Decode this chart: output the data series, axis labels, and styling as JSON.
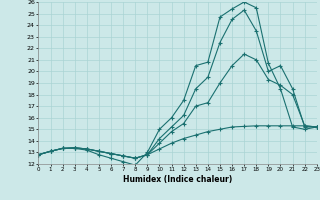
{
  "xlabel": "Humidex (Indice chaleur)",
  "xlim": [
    0,
    23
  ],
  "ylim": [
    12,
    26
  ],
  "bg_color": "#cce8e8",
  "grid_color": "#aad4d4",
  "line_color": "#1a7070",
  "curves": [
    {
      "x": [
        0,
        1,
        2,
        3,
        4,
        5,
        6,
        7,
        8,
        9,
        10,
        11,
        12,
        13,
        14,
        15,
        16,
        17,
        18,
        19,
        20,
        21,
        22,
        23
      ],
      "y": [
        12.8,
        13.1,
        13.35,
        13.35,
        13.2,
        12.8,
        12.5,
        12.2,
        11.9,
        13.0,
        15.0,
        16.0,
        17.5,
        20.5,
        20.8,
        24.7,
        25.4,
        26.0,
        25.5,
        20.7,
        18.5,
        15.2,
        15.0,
        15.2
      ]
    },
    {
      "x": [
        0,
        1,
        2,
        3,
        4,
        5,
        6,
        7,
        8,
        9,
        10,
        11,
        12,
        13,
        14,
        15,
        16,
        17,
        18,
        19,
        20,
        21,
        22,
        23
      ],
      "y": [
        12.8,
        13.1,
        13.35,
        13.4,
        13.3,
        13.1,
        12.9,
        12.7,
        12.5,
        12.8,
        14.2,
        15.2,
        16.2,
        18.5,
        19.5,
        22.5,
        24.5,
        25.3,
        23.5,
        20.0,
        20.5,
        18.5,
        15.2,
        15.2
      ]
    },
    {
      "x": [
        0,
        1,
        2,
        3,
        4,
        5,
        6,
        7,
        8,
        9,
        10,
        11,
        12,
        13,
        14,
        15,
        16,
        17,
        18,
        19,
        20,
        21,
        22,
        23
      ],
      "y": [
        12.8,
        13.1,
        13.35,
        13.4,
        13.3,
        13.1,
        12.9,
        12.7,
        12.5,
        12.8,
        13.8,
        14.8,
        15.5,
        17.0,
        17.3,
        19.0,
        20.5,
        21.5,
        21.0,
        19.3,
        18.8,
        18.0,
        15.3,
        15.2
      ]
    },
    {
      "x": [
        0,
        1,
        2,
        3,
        4,
        5,
        6,
        7,
        8,
        9,
        10,
        11,
        12,
        13,
        14,
        15,
        16,
        17,
        18,
        19,
        20,
        21,
        22,
        23
      ],
      "y": [
        12.8,
        13.1,
        13.35,
        13.4,
        13.3,
        13.1,
        12.9,
        12.7,
        12.5,
        12.8,
        13.3,
        13.8,
        14.2,
        14.5,
        14.8,
        15.0,
        15.2,
        15.25,
        15.3,
        15.3,
        15.3,
        15.3,
        15.3,
        15.2
      ]
    }
  ]
}
